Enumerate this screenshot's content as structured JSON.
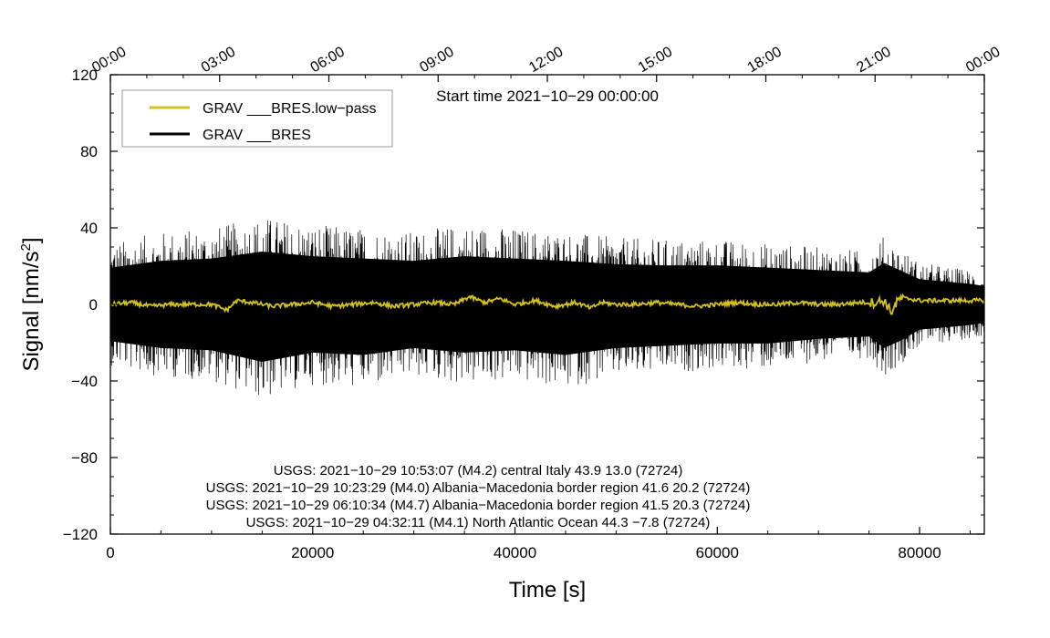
{
  "chart_data": {
    "type": "line",
    "xlabel": "Time [s]",
    "ylabel": "Signal [nm/s",
    "ylabel_superscript": "2",
    "ylabel_suffix": "]",
    "xlim": [
      0,
      86400
    ],
    "ylim": [
      -120,
      120
    ],
    "x_ticks": [
      0,
      20000,
      40000,
      60000,
      80000
    ],
    "x_tick_labels": [
      "0",
      "20000",
      "40000",
      "60000",
      "80000"
    ],
    "y_ticks": [
      -120,
      -80,
      -40,
      0,
      40,
      80,
      120
    ],
    "y_tick_labels": [
      "−120",
      "−80",
      "−40",
      "0",
      "40",
      "80",
      "120"
    ],
    "top_axis_ticks": [
      0,
      10800,
      21600,
      32400,
      43200,
      54000,
      64800,
      75600,
      86400
    ],
    "top_axis_labels": [
      "00:00",
      "03:00",
      "06:00",
      "09:00",
      "12:00",
      "15:00",
      "18:00",
      "21:00",
      "00:00"
    ],
    "start_time_label": "Start time 2021−10−29 00:00:00",
    "grid": false,
    "legend_position": "top-left",
    "legend": [
      {
        "label": "GRAV ___BRES.low−pass",
        "color": "#d4c21a"
      },
      {
        "label": "GRAV ___BRES",
        "color": "#000000"
      }
    ],
    "annotations": [
      "USGS: 2021−10−29 10:53:07 (M4.2) central Italy 43.9 13.0 (72724)",
      "USGS: 2021−10−29 10:23:29 (M4.0) Albania−Macedonia border region 41.6 20.2 (72724)",
      "USGS: 2021−10−29 06:10:34 (M4.7) Albania−Macedonia border region 41.5 20.3 (72724)",
      "USGS: 2021−10−29 04:32:11 (M4.1) North Atlantic Ocean 44.3 −7.8 (72724)"
    ],
    "series": [
      {
        "name": "GRAV ___BRES",
        "color": "#000000",
        "x": [
          0,
          5000,
          10000,
          15000,
          20000,
          25000,
          30000,
          35000,
          40000,
          45000,
          50000,
          55000,
          60000,
          65000,
          70000,
          75000,
          76500,
          78000,
          80000,
          85000,
          86400
        ],
        "y_max": [
          32,
          38,
          40,
          46,
          42,
          40,
          38,
          42,
          40,
          38,
          35,
          34,
          34,
          32,
          30,
          28,
          36,
          30,
          22,
          18,
          16
        ],
        "y_min": [
          -32,
          -38,
          -40,
          -50,
          -42,
          -44,
          -38,
          -42,
          -40,
          -44,
          -38,
          -36,
          -34,
          -34,
          -30,
          -28,
          -38,
          -32,
          -22,
          -18,
          -16
        ]
      },
      {
        "name": "GRAV ___BRES.low−pass",
        "color": "#d4c21a",
        "x": [
          0,
          2000,
          4000,
          6000,
          8000,
          10000,
          11500,
          12500,
          14000,
          16000,
          18000,
          20000,
          22000,
          24000,
          26000,
          28000,
          30000,
          32000,
          34000,
          35500,
          37000,
          38500,
          40000,
          42000,
          44000,
          46000,
          47500,
          48500,
          50000,
          52000,
          54000,
          56000,
          58000,
          60000,
          62000,
          64000,
          66000,
          68000,
          70000,
          72000,
          74000,
          75500,
          76500,
          77200,
          78000,
          79000,
          80000,
          82000,
          84000,
          86400
        ],
        "y": [
          0,
          1,
          -1,
          0,
          0,
          0,
          -3,
          2,
          1,
          -1,
          0,
          1,
          -1,
          0,
          1,
          -1,
          0,
          1,
          0,
          4,
          1,
          3,
          0,
          2,
          -1,
          1,
          -2,
          1,
          0,
          0,
          1,
          0,
          -1,
          0,
          1,
          0,
          0,
          1,
          0,
          0,
          1,
          1,
          2,
          -4,
          3,
          3,
          2,
          2,
          2,
          2
        ]
      }
    ]
  }
}
